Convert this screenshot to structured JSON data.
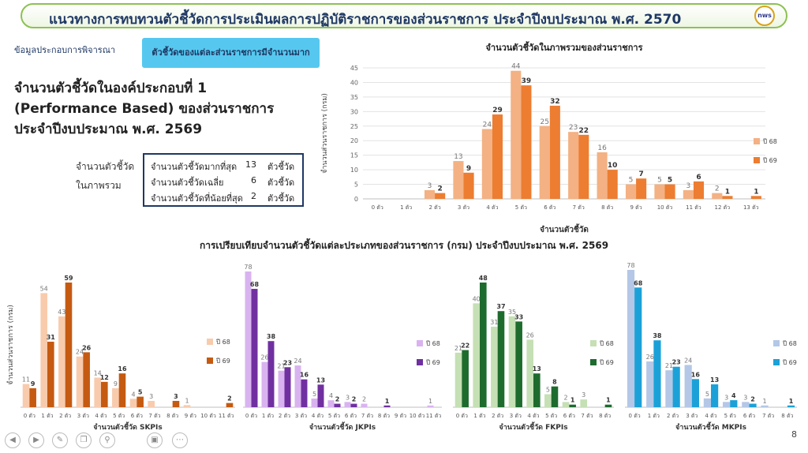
{
  "header": {
    "title": "แนวทางการทบทวนตัวชี้วัดการประเมินผลการปฏิบัติราชการของส่วนราชการ ประจำปีงบประมาณ พ.ศ. 2570",
    "logo_text": "nws"
  },
  "left_label": "ข้อมูลประกอบการพิจารณา",
  "tab_button": "ตัวชี้วัดของแต่ละส่วนราชการมีจำนวนมาก",
  "heading": {
    "line1": "จำนวนตัวชี้วัดในองค์ประกอบที่ 1",
    "line2": "(Performance Based) ของส่วนราชการ",
    "line3": "ประจำปีงบประมาณ พ.ศ. 2569"
  },
  "summary": {
    "label_line1": "จำนวนตัวชี้วัด",
    "label_line2": "ในภาพรวม",
    "rows": [
      {
        "label": "จำนวนตัวชี้วัดมากที่สุด",
        "value": "13",
        "unit": "ตัวชี้วัด"
      },
      {
        "label": "จำนวนตัวชี้วัดเฉลี่ย",
        "value": "6",
        "unit": "ตัวชี้วัด"
      },
      {
        "label": "จำนวนตัวชี้วัดที่น้อยที่สุด",
        "value": "2",
        "unit": "ตัวชี้วัด"
      }
    ]
  },
  "section_title": "การเปรียบเทียบจำนวนตัวชี้วัดแต่ละประเภทของส่วนราชการ (กรม) ประจำปีงบประมาณ พ.ศ. 2569",
  "page_number": "8",
  "toolbar": {
    "icons": [
      "prev-icon",
      "next-icon",
      "pen-icon",
      "copy-icon",
      "zoom-icon",
      "video-icon",
      "more-icon"
    ]
  },
  "chart_data": [
    {
      "type": "bar",
      "title": "จำนวนตัวชี้วัดในภาพรวมของส่วนราชการ",
      "xlabel": "จำนวนตัวชี้วัด",
      "ylabel": "จำนวนส่วนราชการ (กรม)",
      "ylim": [
        0,
        45
      ],
      "yticks": [
        0,
        5,
        10,
        15,
        20,
        25,
        30,
        35,
        40,
        45
      ],
      "categories": [
        "0 ตัว",
        "1 ตัว",
        "2 ตัว",
        "3 ตัว",
        "4 ตัว",
        "5 ตัว",
        "6 ตัว",
        "7 ตัว",
        "8 ตัว",
        "9 ตัว",
        "10 ตัว",
        "11 ตัว",
        "12 ตัว",
        "13 ตัว"
      ],
      "series": [
        {
          "name": "ปี 68",
          "color": "#f4b183",
          "values": [
            null,
            null,
            3,
            13,
            24,
            44,
            25,
            23,
            16,
            5,
            5,
            3,
            2,
            null
          ]
        },
        {
          "name": "ปี 69",
          "color": "#ed7d31",
          "values": [
            null,
            null,
            2,
            9,
            29,
            39,
            32,
            22,
            10,
            7,
            5,
            6,
            1,
            1
          ]
        }
      ],
      "legend": "right",
      "grid": true
    },
    {
      "type": "bar",
      "xlabel": "จำนวนตัวชี้วัด SKPIs",
      "ylabel": "จำนวนส่วนราชการ (กรม)",
      "categories": [
        "0 ตัว",
        "1 ตัว",
        "2 ตัว",
        "3 ตัว",
        "4 ตัว",
        "5 ตัว",
        "6 ตัว",
        "7 ตัว",
        "8 ตัว",
        "9 ตัว",
        "10 ตัว",
        "11 ตัว"
      ],
      "series": [
        {
          "name": "ปี 68",
          "color": "#f8cbad",
          "values": [
            11,
            54,
            43,
            24,
            14,
            9,
            4,
            3,
            null,
            1,
            null,
            null
          ]
        },
        {
          "name": "ปี 69",
          "color": "#c55a11",
          "values": [
            9,
            31,
            59,
            26,
            12,
            16,
            5,
            null,
            3,
            null,
            null,
            2
          ]
        }
      ],
      "legend": "right"
    },
    {
      "type": "bar",
      "xlabel": "จำนวนตัวชี้วัด JKPIs",
      "categories": [
        "0 ตัว",
        "1 ตัว",
        "2 ตัว",
        "3 ตัว",
        "4 ตัว",
        "5 ตัว",
        "6 ตัว",
        "7 ตัว",
        "8 ตัว",
        "9 ตัว",
        "10 ตัว",
        "11 ตัว"
      ],
      "series": [
        {
          "name": "ปี 68",
          "color": "#d9b3f0",
          "values": [
            78,
            26,
            21,
            24,
            5,
            4,
            3,
            2,
            null,
            null,
            null,
            1
          ]
        },
        {
          "name": "ปี 69",
          "color": "#7030a0",
          "values": [
            68,
            38,
            23,
            16,
            13,
            2,
            2,
            null,
            1,
            null,
            null,
            null
          ]
        }
      ],
      "legend": "right"
    },
    {
      "type": "bar",
      "xlabel": "จำนวนตัวชี้วัด FKPIs",
      "categories": [
        "0 ตัว",
        "1 ตัว",
        "2 ตัว",
        "3 ตัว",
        "4 ตัว",
        "5 ตัว",
        "6 ตัว",
        "7 ตัว",
        "8 ตัว"
      ],
      "series": [
        {
          "name": "ปี 68",
          "color": "#c5e0b4",
          "values": [
            21,
            40,
            31,
            35,
            26,
            5,
            2,
            3,
            null
          ]
        },
        {
          "name": "ปี 69",
          "color": "#1e6b2e",
          "values": [
            22,
            48,
            37,
            33,
            13,
            8,
            1,
            null,
            1
          ]
        }
      ],
      "legend": "right"
    },
    {
      "type": "bar",
      "xlabel": "จำนวนตัวชี้วัด MKPIs",
      "categories": [
        "0 ตัว",
        "1 ตัว",
        "2 ตัว",
        "3 ตัว",
        "4 ตัว",
        "5 ตัว",
        "6 ตัว",
        "7 ตัว",
        "8 ตัว"
      ],
      "series": [
        {
          "name": "ปี 68",
          "color": "#b4c7e7",
          "values": [
            78,
            26,
            21,
            24,
            5,
            3,
            3,
            1,
            null
          ]
        },
        {
          "name": "ปี 69",
          "color": "#1ba1d8",
          "values": [
            68,
            38,
            23,
            16,
            13,
            4,
            2,
            null,
            1
          ]
        }
      ],
      "legend": "right"
    }
  ]
}
